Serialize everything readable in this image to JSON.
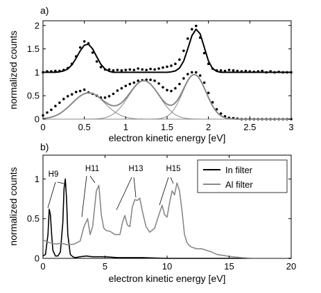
{
  "chart_data": [
    {
      "panel_label": "a)",
      "type": "scatter",
      "xlabel": "electron kinetic energy [eV]",
      "ylabel": "normalized counts",
      "xlim": [
        0,
        3
      ],
      "ylim": [
        0,
        2.1
      ],
      "xticks": [
        0,
        0.5,
        1,
        1.5,
        2,
        2.5,
        3
      ],
      "xtick_labels": [
        "0",
        "0.5",
        "1",
        "1.5",
        "2",
        "2.5",
        "3"
      ],
      "yticks": [
        0,
        0.5,
        1,
        1.5,
        2
      ],
      "ytick_labels": [
        "0",
        "0.5",
        "1",
        "1.5",
        "2"
      ],
      "grid": false,
      "series": [
        {
          "kind": "points",
          "color": "#000000",
          "x": [
            0.0,
            0.05,
            0.1,
            0.15,
            0.2,
            0.25,
            0.3,
            0.35,
            0.4,
            0.45,
            0.5,
            0.55,
            0.6,
            0.65,
            0.7,
            0.75,
            0.8,
            0.85,
            0.9,
            0.95,
            1.0,
            1.05,
            1.1,
            1.15,
            1.2,
            1.25,
            1.3,
            1.35,
            1.4,
            1.45,
            1.5,
            1.55,
            1.6,
            1.65,
            1.7,
            1.75,
            1.8,
            1.85,
            1.9,
            1.95,
            2.0,
            2.05,
            2.1,
            2.15,
            2.2,
            2.25,
            2.3,
            2.35,
            2.4,
            2.45,
            2.5,
            2.55,
            2.6,
            2.65,
            2.7,
            2.75,
            2.8,
            2.85,
            2.9,
            2.95,
            3.0
          ],
          "y": [
            1.0,
            1.02,
            1.02,
            1.03,
            1.03,
            1.05,
            1.09,
            1.18,
            1.34,
            1.53,
            1.66,
            1.62,
            1.42,
            1.23,
            1.11,
            1.06,
            1.06,
            1.04,
            1.05,
            1.04,
            1.05,
            1.06,
            1.05,
            1.08,
            1.06,
            1.05,
            1.07,
            1.06,
            1.08,
            1.1,
            1.12,
            1.14,
            1.18,
            1.27,
            1.46,
            1.72,
            1.92,
            1.99,
            1.74,
            1.41,
            1.18,
            1.08,
            1.04,
            1.04,
            1.03,
            1.05,
            1.04,
            1.03,
            1.02,
            1.03,
            1.02,
            1.01,
            1.02,
            1.03,
            1.0,
            1.02,
            1.0,
            1.01,
            1.0,
            1.0,
            1.0
          ]
        },
        {
          "kind": "fit-line",
          "color": "#000000",
          "x": [
            0.0,
            0.05,
            0.1,
            0.15,
            0.2,
            0.25,
            0.3,
            0.35,
            0.4,
            0.45,
            0.5,
            0.55,
            0.6,
            0.65,
            0.7,
            0.75,
            0.8,
            0.85,
            0.9,
            0.95,
            1.0,
            1.05,
            1.1,
            1.15,
            1.2,
            1.25,
            1.3,
            1.35,
            1.4,
            1.45,
            1.5,
            1.55,
            1.6,
            1.65,
            1.7,
            1.75,
            1.8,
            1.85,
            1.9,
            1.95,
            2.0,
            2.05,
            2.1,
            2.15,
            2.2,
            2.25,
            2.3,
            2.35,
            2.4,
            2.45,
            2.5,
            2.55,
            2.6,
            2.65,
            2.7,
            2.75,
            2.8,
            2.85,
            2.9,
            2.95,
            3.0
          ],
          "y": [
            1.0,
            1.0,
            1.0,
            1.0,
            1.01,
            1.03,
            1.07,
            1.16,
            1.3,
            1.46,
            1.58,
            1.6,
            1.5,
            1.33,
            1.17,
            1.07,
            1.02,
            1.0,
            1.0,
            1.0,
            1.0,
            1.0,
            1.0,
            1.0,
            1.0,
            1.0,
            1.0,
            1.0,
            1.0,
            1.0,
            1.0,
            1.01,
            1.03,
            1.09,
            1.24,
            1.5,
            1.78,
            1.92,
            1.82,
            1.53,
            1.24,
            1.08,
            1.02,
            1.0,
            1.0,
            1.0,
            1.0,
            1.0,
            1.0,
            1.0,
            1.0,
            1.0,
            1.0,
            1.0,
            1.0,
            1.0,
            1.0,
            1.0,
            1.0,
            1.0,
            1.0
          ]
        },
        {
          "kind": "points",
          "color": "#000000",
          "x": [
            0.0,
            0.05,
            0.1,
            0.15,
            0.2,
            0.25,
            0.3,
            0.35,
            0.4,
            0.45,
            0.5,
            0.55,
            0.6,
            0.65,
            0.7,
            0.75,
            0.8,
            0.85,
            0.9,
            0.95,
            1.0,
            1.05,
            1.1,
            1.15,
            1.2,
            1.25,
            1.3,
            1.35,
            1.4,
            1.45,
            1.5,
            1.55,
            1.6,
            1.65,
            1.7,
            1.75,
            1.8,
            1.85,
            1.9,
            1.95,
            2.0,
            2.05,
            2.1,
            2.15,
            2.2,
            2.25,
            2.3,
            2.35,
            2.4,
            2.45,
            2.5,
            2.55,
            2.6,
            2.65,
            2.7,
            2.75,
            2.8,
            2.85,
            2.9,
            2.95,
            3.0
          ],
          "y": [
            0.08,
            0.14,
            0.2,
            0.28,
            0.35,
            0.43,
            0.49,
            0.53,
            0.58,
            0.6,
            0.63,
            0.57,
            0.54,
            0.5,
            0.46,
            0.46,
            0.49,
            0.54,
            0.61,
            0.66,
            0.71,
            0.75,
            0.78,
            0.82,
            0.83,
            0.84,
            0.84,
            0.82,
            0.76,
            0.68,
            0.62,
            0.6,
            0.66,
            0.75,
            0.87,
            0.96,
            1.0,
            1.0,
            0.93,
            0.78,
            0.56,
            0.36,
            0.21,
            0.12,
            0.06,
            0.03,
            0.02,
            0.01,
            0.0,
            0.0,
            0.0,
            0.0,
            0.0,
            0.0,
            0.0,
            0.0,
            0.0,
            0.0,
            0.0,
            0.0,
            0.0
          ]
        },
        {
          "kind": "sum-line",
          "color": "#888888",
          "description_gaussians": [
            [
              0.55,
              0.56,
              0.28
            ],
            [
              1.22,
              0.82,
              0.26
            ],
            [
              1.83,
              0.95,
              0.2
            ]
          ]
        }
      ]
    },
    {
      "panel_label": "b)",
      "type": "line",
      "xlabel": "electron kinetic energy [eV]",
      "ylabel": "normalized counts",
      "xlim": [
        0,
        20
      ],
      "ylim": [
        0,
        1.3
      ],
      "xticks": [
        0,
        5,
        10,
        15,
        20
      ],
      "xtick_labels": [
        "0",
        "5",
        "10",
        "15",
        "20"
      ],
      "yticks": [
        0,
        0.5,
        1
      ],
      "ytick_labels": [
        "0",
        "0.5",
        "1"
      ],
      "grid": false,
      "legend_position": "top-right",
      "annotations": [
        "H9",
        "H11",
        "H13",
        "H15"
      ],
      "series": [
        {
          "name": "In filter",
          "color": "#000000",
          "x": [
            0,
            0.2,
            0.4,
            0.5,
            0.6,
            0.7,
            0.8,
            1.0,
            1.2,
            1.4,
            1.6,
            1.7,
            1.8,
            1.9,
            2.0,
            2.2,
            2.4,
            2.6,
            3.0,
            3.5,
            4.0,
            5.0,
            6.0,
            8.0,
            10.0,
            20.0
          ],
          "y": [
            0.03,
            0.05,
            0.3,
            0.62,
            0.55,
            0.3,
            0.1,
            0.03,
            0.03,
            0.08,
            0.45,
            0.88,
            1.0,
            0.75,
            0.3,
            0.05,
            0.02,
            0.01,
            0.02,
            0.03,
            0.02,
            0.02,
            0.01,
            0.01,
            0.0,
            0.0
          ]
        },
        {
          "name": "Al filter",
          "color": "#888888",
          "x": [
            0,
            0.5,
            1.0,
            1.5,
            2.0,
            2.5,
            3.0,
            3.3,
            3.6,
            3.8,
            4.0,
            4.3,
            4.5,
            4.7,
            4.9,
            5.1,
            5.4,
            5.8,
            6.2,
            6.4,
            6.6,
            6.8,
            7.0,
            7.2,
            7.4,
            7.6,
            7.8,
            8.0,
            8.3,
            8.6,
            9.0,
            9.3,
            9.6,
            9.8,
            10.0,
            10.2,
            10.4,
            10.6,
            10.8,
            11.0,
            11.2,
            11.4,
            11.6,
            11.8,
            12.0,
            12.4,
            12.8,
            13.2,
            13.6,
            14.0,
            14.4,
            14.8,
            15.2,
            16.0,
            17.0,
            18.0,
            19.0,
            20.0
          ],
          "y": [
            0.23,
            0.2,
            0.18,
            0.19,
            0.17,
            0.18,
            0.22,
            0.4,
            0.5,
            0.3,
            0.4,
            0.85,
            0.92,
            0.55,
            0.38,
            0.35,
            0.34,
            0.3,
            0.3,
            0.45,
            0.54,
            0.42,
            0.4,
            0.65,
            0.74,
            0.73,
            0.76,
            0.6,
            0.4,
            0.33,
            0.38,
            0.53,
            0.67,
            0.55,
            0.52,
            0.7,
            0.85,
            0.8,
            0.95,
            0.85,
            0.6,
            0.3,
            0.2,
            0.16,
            0.14,
            0.12,
            0.12,
            0.1,
            0.08,
            0.05,
            0.04,
            0.03,
            0.02,
            0.01,
            0.0,
            0.0,
            0.0,
            0.0
          ]
        }
      ]
    }
  ]
}
